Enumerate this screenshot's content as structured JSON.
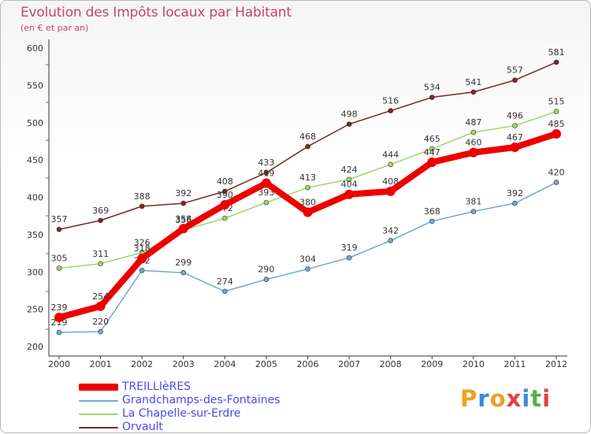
{
  "header": {
    "title": "Evolution des Impôts locaux par Habitant",
    "subtitle": "(en € et par an)"
  },
  "logo": {
    "text": "Proxiti"
  },
  "chart_data": {
    "type": "line",
    "title": "Evolution des Impôts locaux par Habitant",
    "subtitle": "(en € et par an)",
    "xlabel": "",
    "ylabel": "",
    "ylim": [
      200,
      600
    ],
    "yticks": [
      200,
      250,
      300,
      350,
      400,
      450,
      500,
      550,
      600
    ],
    "grid": false,
    "legend_position": "bottom-left",
    "x": [
      "2000",
      "2001",
      "2002",
      "2003",
      "2004",
      "2005",
      "2006",
      "2007",
      "2008",
      "2009",
      "2010",
      "2011",
      "2012"
    ],
    "series": [
      {
        "name": "Orvault",
        "color": "#7a2828",
        "values": [
          357,
          369,
          388,
          392,
          408,
          433,
          468,
          498,
          516,
          534,
          541,
          557,
          581
        ]
      },
      {
        "name": "La Chapelle-sur-Erdre",
        "color": "#99d86e",
        "values": [
          305,
          311,
          326,
          356,
          372,
          393,
          413,
          424,
          444,
          465,
          487,
          496,
          515
        ]
      },
      {
        "name": "Grandchamps-des-Fontaines",
        "color": "#6fa8d8",
        "values": [
          219,
          220,
          302,
          299,
          274,
          290,
          304,
          319,
          342,
          368,
          381,
          392,
          420
        ]
      },
      {
        "name": "TREILLIèRES",
        "color": "#ee0000",
        "values": [
          239,
          254,
          318,
          358,
          390,
          419,
          380,
          404,
          408,
          447,
          460,
          467,
          485
        ]
      }
    ]
  }
}
